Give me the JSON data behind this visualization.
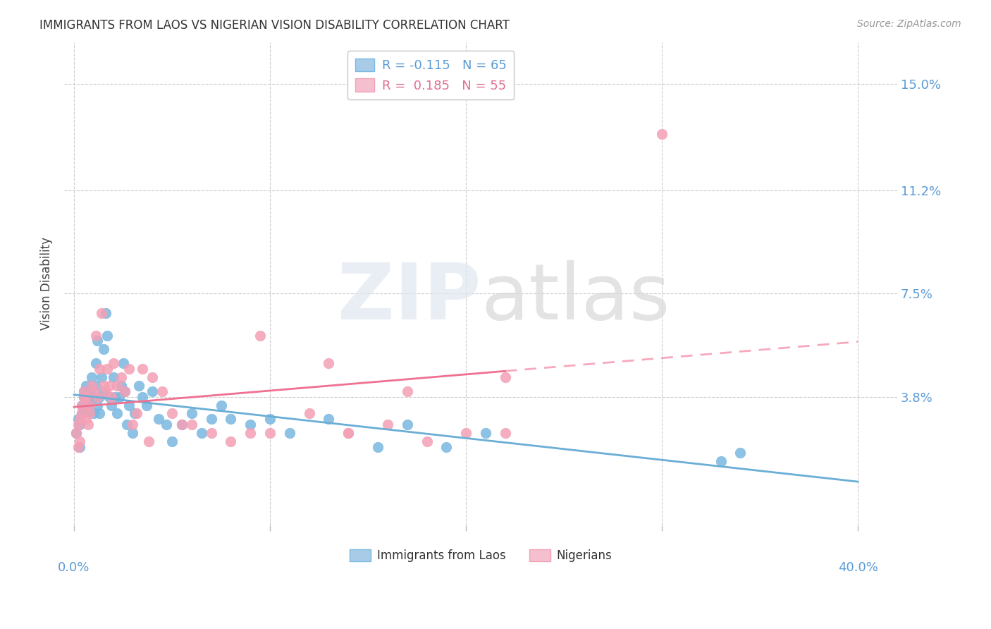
{
  "title": "IMMIGRANTS FROM LAOS VS NIGERIAN VISION DISABILITY CORRELATION CHART",
  "source": "Source: ZipAtlas.com",
  "ylabel": "Vision Disability",
  "ytick_labels": [
    "3.8%",
    "7.5%",
    "11.2%",
    "15.0%"
  ],
  "ytick_values": [
    0.038,
    0.075,
    0.112,
    0.15
  ],
  "xlim": [
    -0.005,
    0.42
  ],
  "ylim": [
    -0.008,
    0.165
  ],
  "laos_color": "#7ab8e0",
  "nigerian_color": "#f4a0b5",
  "laos_line_color": "#6aaed6",
  "nigerian_line_color": "#f07090",
  "laos_x": [
    0.001,
    0.002,
    0.003,
    0.003,
    0.004,
    0.004,
    0.005,
    0.005,
    0.006,
    0.006,
    0.007,
    0.007,
    0.007,
    0.008,
    0.008,
    0.009,
    0.01,
    0.01,
    0.011,
    0.011,
    0.012,
    0.012,
    0.013,
    0.013,
    0.014,
    0.015,
    0.015,
    0.016,
    0.017,
    0.018,
    0.019,
    0.02,
    0.021,
    0.022,
    0.023,
    0.024,
    0.025,
    0.026,
    0.027,
    0.028,
    0.03,
    0.031,
    0.033,
    0.035,
    0.037,
    0.04,
    0.043,
    0.047,
    0.05,
    0.055,
    0.06,
    0.065,
    0.07,
    0.075,
    0.08,
    0.09,
    0.1,
    0.11,
    0.13,
    0.155,
    0.17,
    0.19,
    0.21,
    0.33,
    0.34
  ],
  "laos_y": [
    0.025,
    0.03,
    0.02,
    0.028,
    0.032,
    0.035,
    0.038,
    0.04,
    0.042,
    0.038,
    0.036,
    0.035,
    0.033,
    0.04,
    0.038,
    0.045,
    0.038,
    0.032,
    0.05,
    0.042,
    0.058,
    0.035,
    0.038,
    0.032,
    0.045,
    0.055,
    0.04,
    0.068,
    0.06,
    0.038,
    0.035,
    0.045,
    0.038,
    0.032,
    0.038,
    0.042,
    0.05,
    0.04,
    0.028,
    0.035,
    0.025,
    0.032,
    0.042,
    0.038,
    0.035,
    0.04,
    0.03,
    0.028,
    0.022,
    0.028,
    0.032,
    0.025,
    0.03,
    0.035,
    0.03,
    0.028,
    0.03,
    0.025,
    0.03,
    0.02,
    0.028,
    0.02,
    0.025,
    0.015,
    0.018
  ],
  "nigerian_x": [
    0.001,
    0.002,
    0.002,
    0.003,
    0.003,
    0.004,
    0.004,
    0.005,
    0.005,
    0.006,
    0.006,
    0.007,
    0.008,
    0.008,
    0.009,
    0.01,
    0.011,
    0.012,
    0.013,
    0.014,
    0.015,
    0.016,
    0.017,
    0.018,
    0.019,
    0.02,
    0.022,
    0.024,
    0.026,
    0.028,
    0.03,
    0.032,
    0.035,
    0.038,
    0.04,
    0.045,
    0.05,
    0.055,
    0.06,
    0.07,
    0.08,
    0.09,
    0.1,
    0.12,
    0.14,
    0.16,
    0.18,
    0.2,
    0.22,
    0.13,
    0.17,
    0.22,
    0.095,
    0.14,
    0.3
  ],
  "nigerian_y": [
    0.025,
    0.02,
    0.028,
    0.03,
    0.022,
    0.032,
    0.035,
    0.04,
    0.038,
    0.03,
    0.038,
    0.028,
    0.032,
    0.035,
    0.042,
    0.04,
    0.06,
    0.038,
    0.048,
    0.068,
    0.042,
    0.04,
    0.048,
    0.042,
    0.038,
    0.05,
    0.042,
    0.045,
    0.04,
    0.048,
    0.028,
    0.032,
    0.048,
    0.022,
    0.045,
    0.04,
    0.032,
    0.028,
    0.028,
    0.025,
    0.022,
    0.025,
    0.025,
    0.032,
    0.025,
    0.028,
    0.022,
    0.025,
    0.025,
    0.05,
    0.04,
    0.045,
    0.06,
    0.025,
    0.132
  ]
}
